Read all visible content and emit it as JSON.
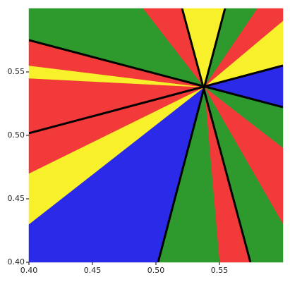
{
  "chart_data": {
    "type": "basins",
    "xlim": [
      0.4,
      0.6
    ],
    "ylim": [
      0.4,
      0.6
    ],
    "xticks": [
      {
        "value": 0.4,
        "label": "0.40"
      },
      0.45,
      {
        "value": 0.5,
        "label": "0.50"
      },
      0.55
    ],
    "yticks": [
      {
        "value": 0.4,
        "label": "0.40"
      },
      0.45,
      {
        "value": 0.5,
        "label": "0.50"
      },
      0.55
    ],
    "center": [
      0.538,
      0.538
    ],
    "regions": [
      {
        "color": "#2e9a2e",
        "points": [
          [
            0.4,
            0.575
          ],
          [
            0.4,
            0.6
          ],
          [
            0.49,
            0.6
          ]
        ]
      },
      {
        "color": "#f23a3a",
        "points": [
          [
            0.49,
            0.6
          ],
          [
            0.5206,
            0.6
          ]
        ]
      },
      {
        "color": "#f7f02a",
        "points": [
          [
            0.5206,
            0.6
          ],
          [
            0.5544,
            0.6
          ]
        ]
      },
      {
        "color": "#2e9a2e",
        "points": [
          [
            0.5544,
            0.6
          ],
          [
            0.58,
            0.6
          ]
        ]
      },
      {
        "color": "#f23a3a",
        "points": [
          [
            0.58,
            0.6
          ],
          [
            0.6,
            0.6
          ],
          [
            0.6,
            0.59
          ]
        ]
      },
      {
        "color": "#f7f02a",
        "points": [
          [
            0.6,
            0.59
          ],
          [
            0.6,
            0.555
          ]
        ]
      },
      {
        "color": "#2a2ae8",
        "points": [
          [
            0.6,
            0.555
          ],
          [
            0.6,
            0.5222
          ]
        ]
      },
      {
        "color": "#2e9a2e",
        "points": [
          [
            0.6,
            0.5222
          ],
          [
            0.6,
            0.49
          ]
        ]
      },
      {
        "color": "#f23a3a",
        "points": [
          [
            0.6,
            0.49
          ],
          [
            0.6,
            0.43
          ]
        ]
      },
      {
        "color": "#2e9a2e",
        "points": [
          [
            0.6,
            0.43
          ],
          [
            0.6,
            0.4
          ],
          [
            0.5744,
            0.4
          ]
        ]
      },
      {
        "color": "#f23a3a",
        "points": [
          [
            0.5744,
            0.4
          ],
          [
            0.55,
            0.4
          ]
        ]
      },
      {
        "color": "#2e9a2e",
        "points": [
          [
            0.55,
            0.4
          ],
          [
            0.5017,
            0.4
          ]
        ]
      },
      {
        "color": "#2a2ae8",
        "points": [
          [
            0.5017,
            0.4
          ],
          [
            0.4,
            0.4
          ],
          [
            0.4,
            0.43
          ]
        ]
      },
      {
        "color": "#f7f02a",
        "points": [
          [
            0.4,
            0.43
          ],
          [
            0.4,
            0.47
          ]
        ]
      },
      {
        "color": "#f23a3a",
        "points": [
          [
            0.4,
            0.47
          ],
          [
            0.4,
            0.545
          ]
        ]
      },
      {
        "color": "#f7f02a",
        "points": [
          [
            0.4,
            0.545
          ],
          [
            0.4,
            0.555
          ]
        ]
      },
      {
        "color": "#f23a3a",
        "points": [
          [
            0.4,
            0.555
          ],
          [
            0.4,
            0.575
          ]
        ]
      }
    ],
    "lines": [
      {
        "x": [
          0.4,
          0.6
        ],
        "y": [
          0.575,
          0.5222
        ]
      },
      {
        "x": [
          0.4,
          0.6
        ],
        "y": [
          0.5017,
          0.555
        ]
      },
      {
        "x": [
          0.5206,
          0.5744
        ],
        "y": [
          0.6,
          0.4
        ]
      },
      {
        "x": [
          0.5544,
          0.5017
        ],
        "y": [
          0.6,
          0.4
        ]
      }
    ],
    "line_color": "#000000"
  }
}
